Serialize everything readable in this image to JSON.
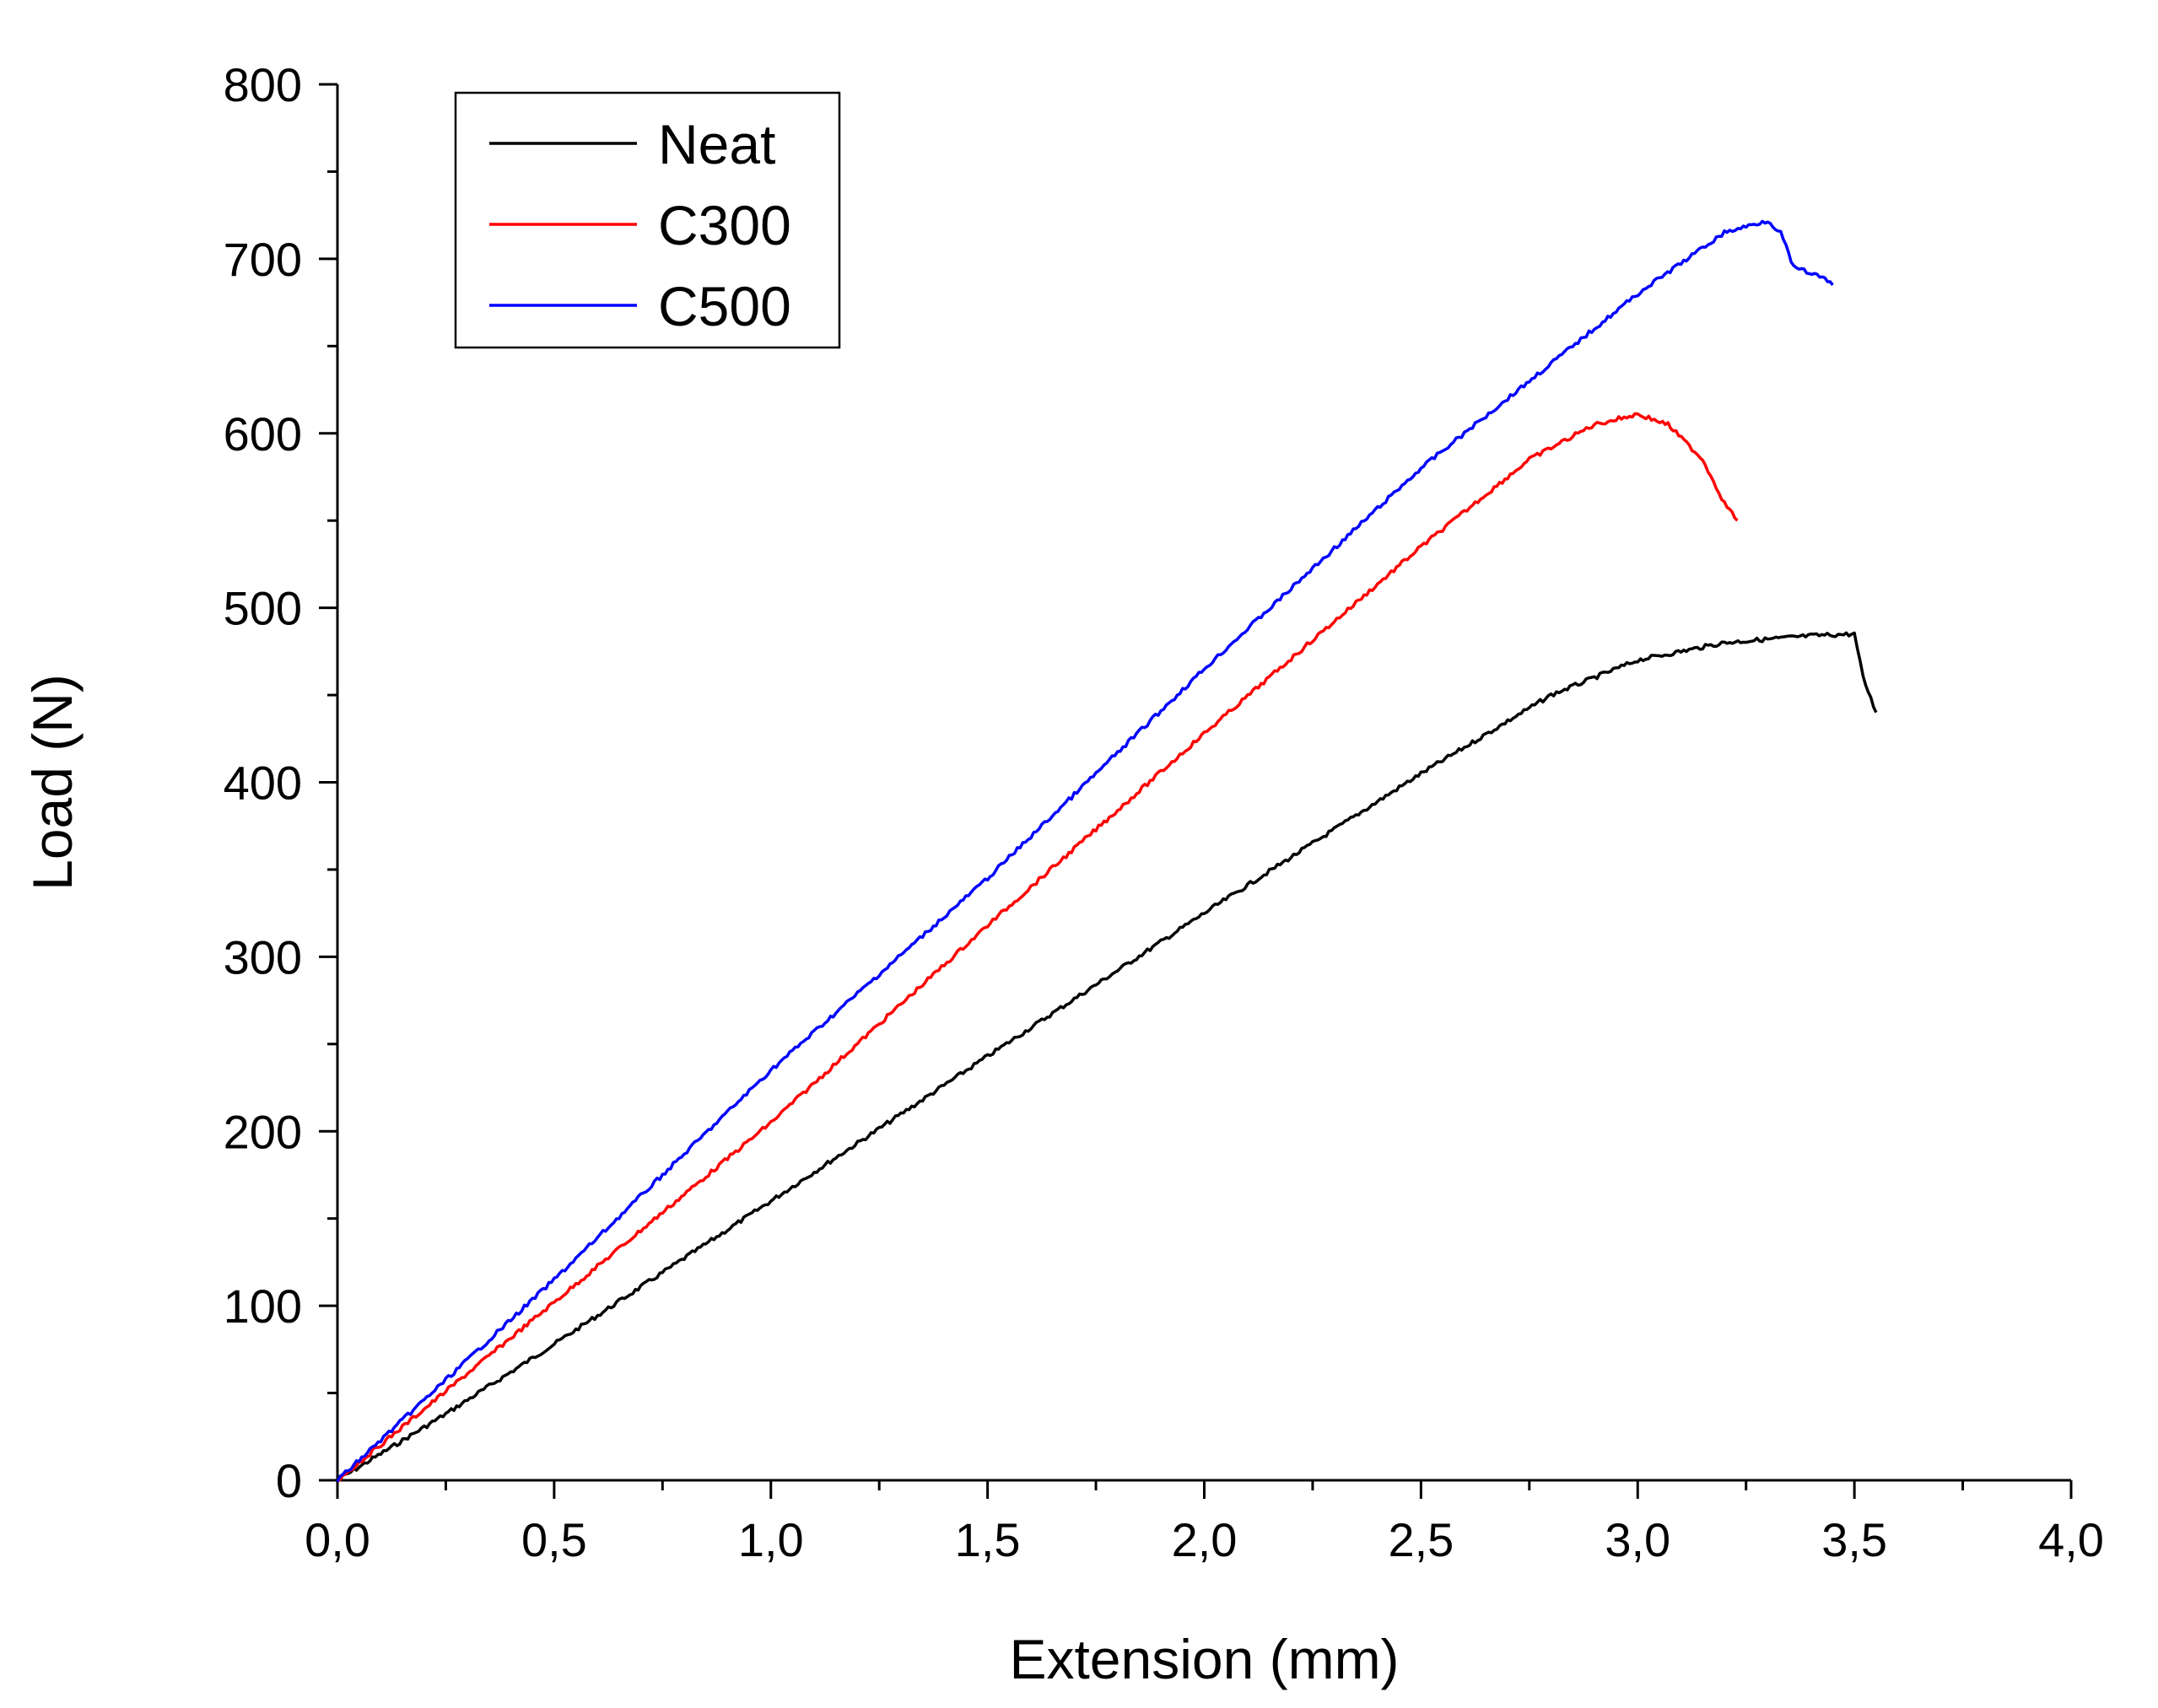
{
  "chart_data": {
    "type": "line",
    "title": "",
    "xlabel": "Extension (mm)",
    "ylabel": "Load (N)",
    "xlim": [
      0,
      4.0
    ],
    "ylim": [
      0,
      800
    ],
    "x_ticks": [
      0,
      0.5,
      1.0,
      1.5,
      2.0,
      2.5,
      3.0,
      3.5,
      4.0
    ],
    "x_tick_labels": [
      "0,0",
      "0,5",
      "1,0",
      "1,5",
      "2,0",
      "2,5",
      "3,0",
      "3,5",
      "4,0"
    ],
    "y_ticks": [
      0,
      100,
      200,
      300,
      400,
      500,
      600,
      700,
      800
    ],
    "y_tick_labels": [
      "0",
      "100",
      "200",
      "300",
      "400",
      "500",
      "600",
      "700",
      "800"
    ],
    "grid": false,
    "legend_position": "top-left",
    "series": [
      {
        "name": "Neat",
        "color": "#000000",
        "x": [
          0,
          0.25,
          0.5,
          1.0,
          1.5,
          2.0,
          2.5,
          2.8,
          3.0,
          3.2,
          3.4,
          3.5,
          3.52,
          3.55
        ],
        "y": [
          0,
          38,
          78,
          160,
          243,
          325,
          405,
          450,
          470,
          480,
          484,
          485,
          460,
          440
        ]
      },
      {
        "name": "C300",
        "color": "#ff0000",
        "x": [
          0,
          0.5,
          1.0,
          1.5,
          2.0,
          2.5,
          2.75,
          2.9,
          3.0,
          3.07,
          3.15,
          3.2,
          3.23
        ],
        "y": [
          0,
          102,
          205,
          318,
          428,
          535,
          585,
          605,
          611,
          605,
          585,
          560,
          550
        ]
      },
      {
        "name": "C500",
        "color": "#0000ff",
        "x": [
          0,
          0.5,
          1.0,
          1.5,
          2.0,
          2.5,
          3.0,
          3.2,
          3.3,
          3.33,
          3.36,
          3.42,
          3.45
        ],
        "y": [
          0,
          115,
          235,
          345,
          465,
          580,
          680,
          715,
          722,
          715,
          695,
          690,
          685
        ]
      }
    ]
  }
}
